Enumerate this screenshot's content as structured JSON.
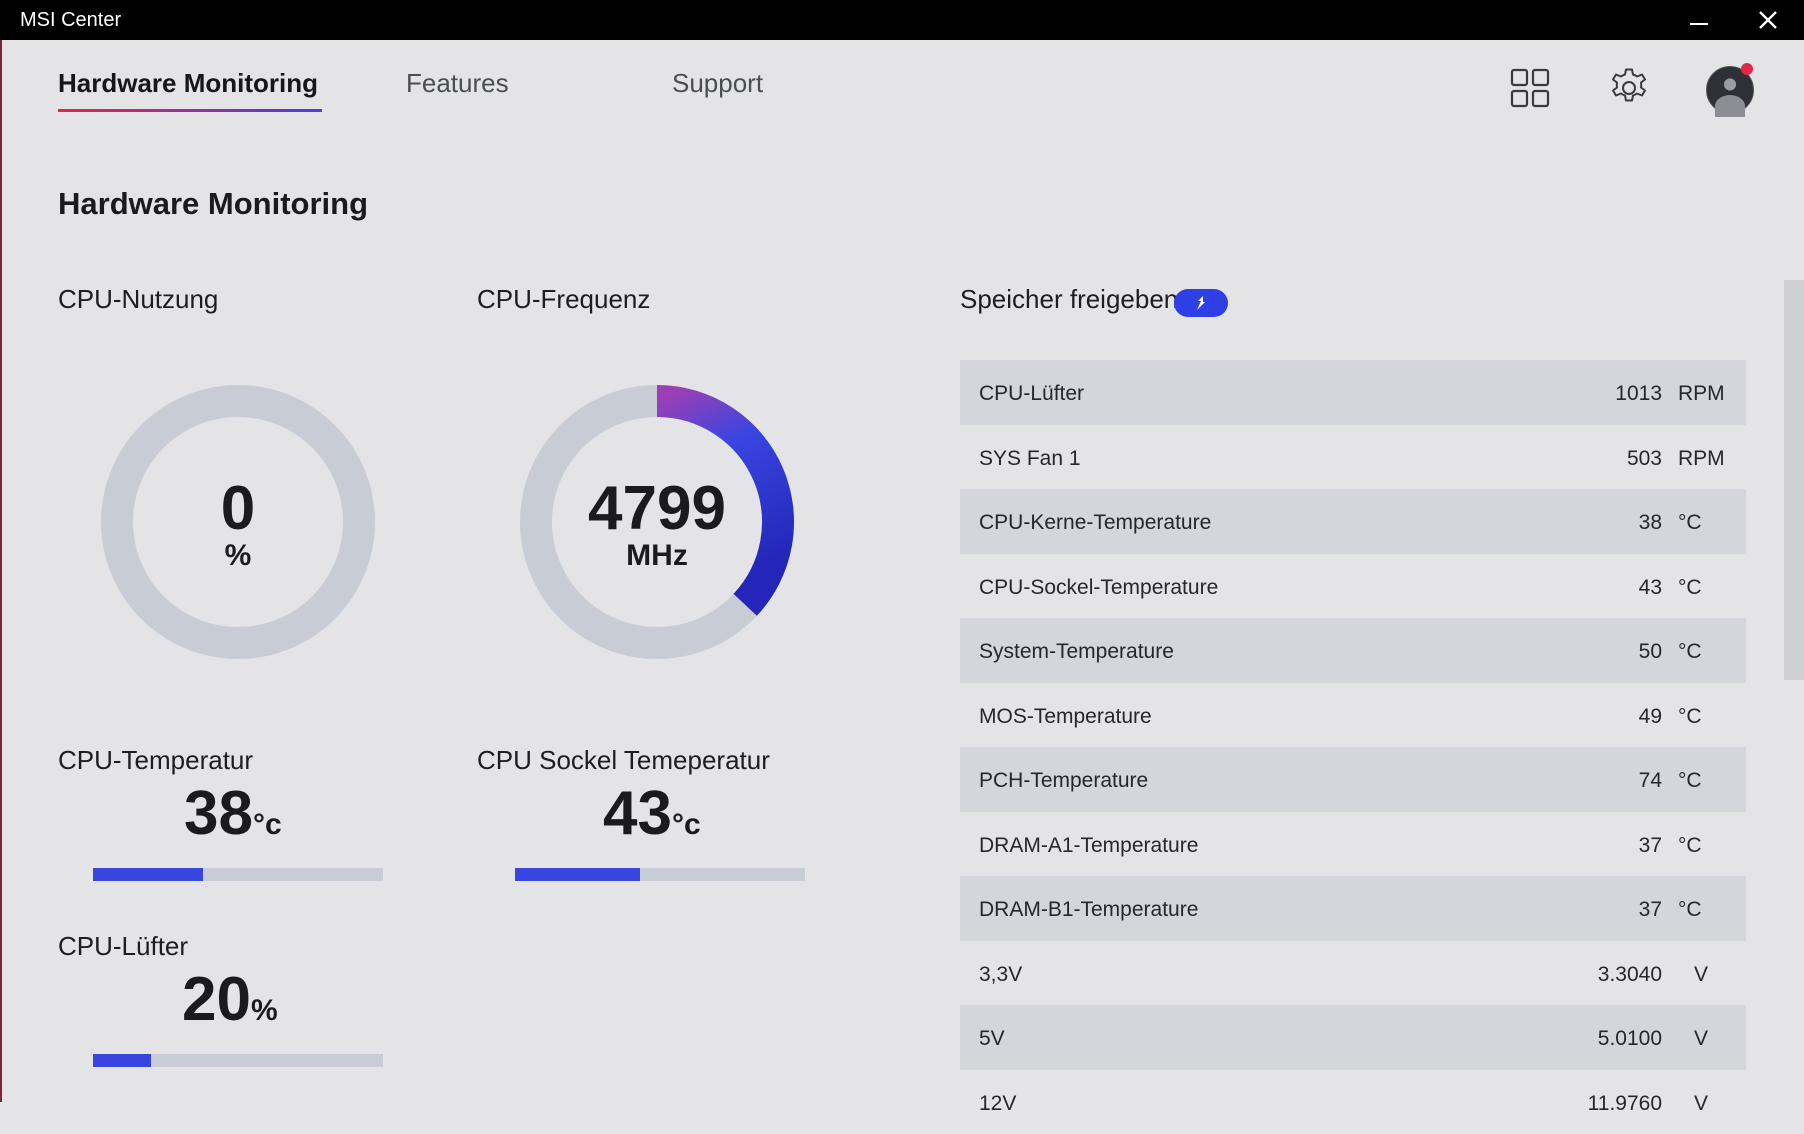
{
  "window": {
    "title": "MSI Center"
  },
  "tabs": [
    {
      "label": "Hardware Monitoring",
      "active": true
    },
    {
      "label": "Features",
      "active": false
    },
    {
      "label": "Support",
      "active": false
    }
  ],
  "page_title": "Hardware Monitoring",
  "cpu_usage": {
    "label": "CPU-Nutzung",
    "value": "0",
    "unit": "%",
    "fraction": 0
  },
  "cpu_freq": {
    "label": "CPU-Frequenz",
    "value": "4799",
    "unit": "MHz",
    "fraction": 0.37
  },
  "cpu_temp": {
    "label": "CPU-Temperatur",
    "value": "38",
    "unit": "°c",
    "fraction": 0.38
  },
  "cpu_socket_temp": {
    "label": "CPU Sockel Temeperatur",
    "value": "43",
    "unit": "°c",
    "fraction": 0.43
  },
  "cpu_fan": {
    "label": "CPU-Lüfter",
    "value": "20",
    "unit": "%",
    "fraction": 0.2
  },
  "release_memory": {
    "label": "Speicher freigeben"
  },
  "sensors": [
    {
      "name": "CPU-Lüfter",
      "value": "1013",
      "unit": "RPM"
    },
    {
      "name": "SYS Fan 1",
      "value": "503",
      "unit": "RPM"
    },
    {
      "name": "CPU-Kerne-Temperature",
      "value": "38",
      "unit": "°C"
    },
    {
      "name": "CPU-Sockel-Temperature",
      "value": "43",
      "unit": "°C"
    },
    {
      "name": "System-Temperature",
      "value": "50",
      "unit": "°C"
    },
    {
      "name": "MOS-Temperature",
      "value": "49",
      "unit": "°C"
    },
    {
      "name": "PCH-Temperature",
      "value": "74",
      "unit": "°C"
    },
    {
      "name": "DRAM-A1-Temperature",
      "value": "37",
      "unit": "°C"
    },
    {
      "name": "DRAM-B1-Temperature",
      "value": "37",
      "unit": "°C"
    },
    {
      "name": "3,3V",
      "value": "3.3040",
      "unit": "V"
    },
    {
      "name": "5V",
      "value": "5.0100",
      "unit": "V"
    },
    {
      "name": "12V",
      "value": "11.9760",
      "unit": "V"
    }
  ],
  "colors": {
    "accent": "#3a45e0",
    "gauge_track": "#c8ccd4",
    "gradient_start": "#9b3fb5",
    "gradient_end": "#2326b8",
    "tab_underline_start": "#e3264b"
  }
}
